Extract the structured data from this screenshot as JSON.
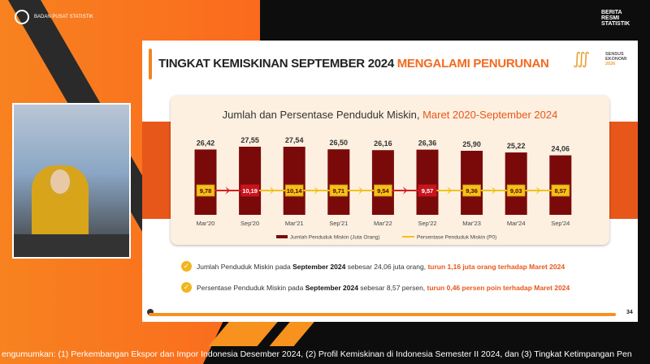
{
  "broadcast": {
    "org_name": "BADAN PUSAT STATISTIK",
    "brs_label": [
      "BERITA",
      "RESMI",
      "STATISTIK"
    ],
    "ticker": "engumumkan: (1) Perkembangan Ekspor dan Impor Indonesia Desember 2024, (2) Profil Kemiskinan di Indonesia Semester II 2024, dan (3) Tingkat Ketimpangan Pen"
  },
  "slide": {
    "title_main": "TINGKAT KEMISKINAN SEPTEMBER 2024 ",
    "title_highlight": "MENGALAMI PENURUNAN",
    "logo_text": [
      "SENSUS",
      "EKONOMI",
      "2026"
    ],
    "page_number": "34",
    "notes": [
      {
        "pre": "Jumlah Penduduk Miskin pada ",
        "bold": "September 2024",
        "mid": " sebesar 24,06 juta orang, ",
        "highlight": "turun 1,16 juta orang terhadap Maret 2024"
      },
      {
        "pre": "Persentase Penduduk Miskin pada ",
        "bold": "September 2024",
        "mid": " sebesar 8,57 persen, ",
        "highlight": "turun 0,46 persen poin terhadap Maret 2024"
      }
    ]
  },
  "chart_data": {
    "type": "bar",
    "title": "Jumlah dan Persentase Penduduk Miskin, ",
    "title_highlight": "Maret 2020-September 2024",
    "categories": [
      "Mar'20",
      "Sep'20",
      "Mar'21",
      "Sep'21",
      "Mar'22",
      "Sep'22",
      "Mar'23",
      "Mar'24",
      "Sep'24"
    ],
    "series": [
      {
        "name": "Jumlah Penduduk Miskin (Juta Orang)",
        "type": "bar",
        "values": [
          26.42,
          27.55,
          27.54,
          26.5,
          26.16,
          26.36,
          25.9,
          25.22,
          24.06
        ],
        "labels": [
          "26,42",
          "27,55",
          "27,54",
          "26,50",
          "26,16",
          "26,36",
          "25,90",
          "25,22",
          "24,06"
        ],
        "color": "#7a0a0a"
      },
      {
        "name": "Persentase Penduduk Miskin (P0)",
        "type": "line",
        "values": [
          9.78,
          10.19,
          10.14,
          9.71,
          9.54,
          9.57,
          9.36,
          9.03,
          8.57
        ],
        "labels": [
          "9,78",
          "10,19",
          "10,14",
          "9,71",
          "9,54",
          "9,57",
          "9,36",
          "9,03",
          "8,57"
        ],
        "color": "#f2c21c"
      }
    ],
    "arrow_colors": [
      "#d42020",
      "#f2c21c",
      "#f2c21c",
      "#f2c21c",
      "#d42020",
      "#f2c21c",
      "#f2c21c",
      "#f2c21c"
    ],
    "ylim": [
      0,
      30
    ],
    "legend": "bottom",
    "grid": false
  }
}
